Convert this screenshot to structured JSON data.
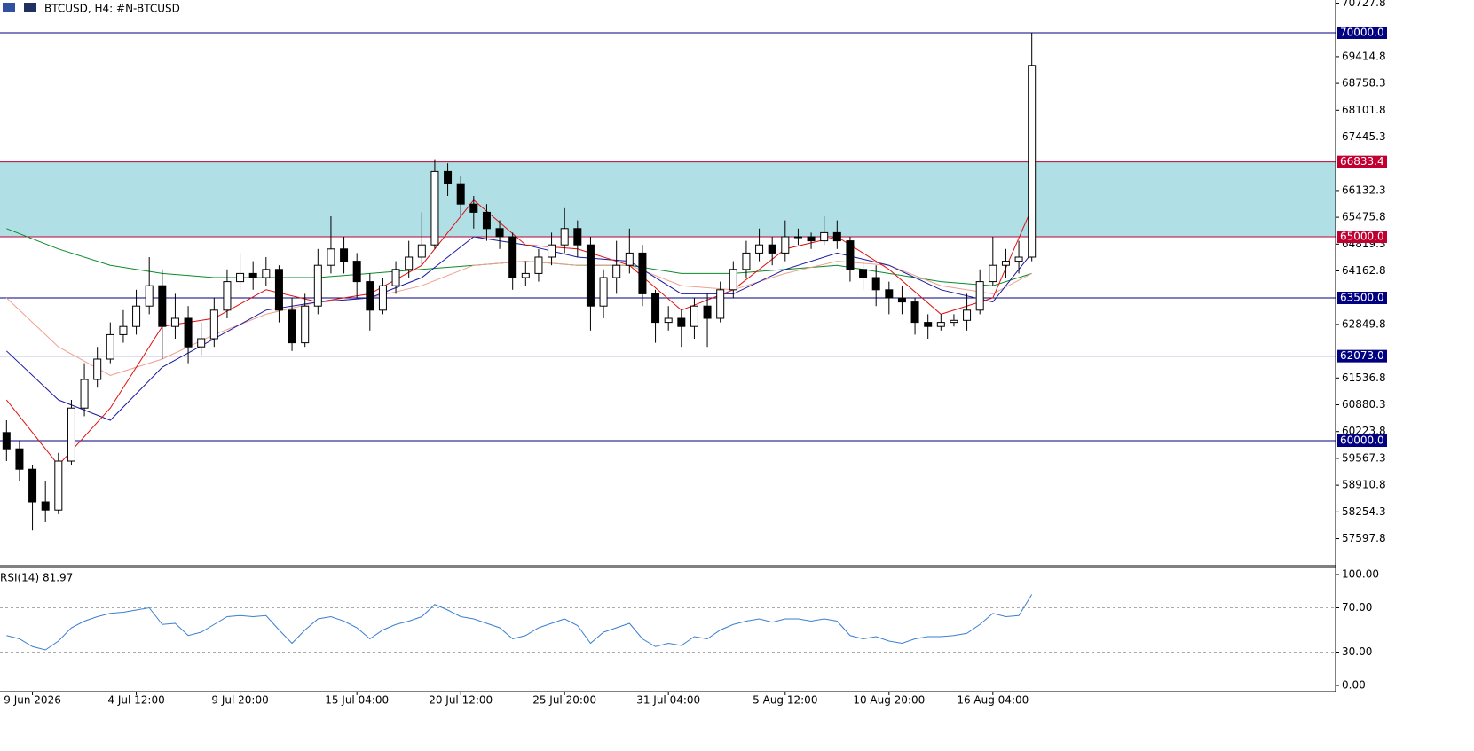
{
  "chart_data": {
    "type": "candlestick",
    "title": "BTCUSD, H4:  #N-BTCUSD",
    "categories": [
      null,
      null,
      "9 Jun 2026",
      null,
      null,
      null,
      null,
      null,
      null,
      null,
      "4 Jul 12:00",
      null,
      null,
      null,
      null,
      null,
      null,
      null,
      "9 Jul 20:00",
      null,
      null,
      null,
      null,
      null,
      null,
      null,
      null,
      "15 Jul 04:00",
      null,
      null,
      null,
      null,
      null,
      null,
      null,
      "20 Jul 12:00",
      null,
      null,
      null,
      null,
      null,
      null,
      null,
      "25 Jul 20:00",
      null,
      null,
      null,
      null,
      null,
      null,
      null,
      "31 Jul 04:00",
      null,
      null,
      null,
      null,
      null,
      null,
      null,
      null,
      "5 Aug 12:00",
      null,
      null,
      null,
      null,
      null,
      null,
      null,
      "10 Aug 20:00",
      null,
      null,
      null,
      null,
      null,
      null,
      null,
      "16 Aug 04:00",
      null,
      null,
      null
    ],
    "open": [
      60200,
      59800,
      59300,
      58500,
      58300,
      59500,
      60800,
      61500,
      62000,
      62600,
      62800,
      63300,
      63800,
      62800,
      63000,
      62300,
      62500,
      63200,
      63900,
      64100,
      64000,
      64200,
      63200,
      62400,
      63300,
      64300,
      64700,
      64400,
      63900,
      63200,
      63800,
      64200,
      64500,
      64800,
      66600,
      66300,
      65800,
      65600,
      65200,
      65000,
      64000,
      64100,
      64500,
      64800,
      65200,
      64800,
      63300,
      64000,
      64300,
      64600,
      63600,
      62900,
      63000,
      62800,
      63300,
      63000,
      63700,
      64200,
      64600,
      64800,
      64600,
      65000,
      65000,
      64900,
      65100,
      64900,
      64200,
      64000,
      63700,
      63500,
      63400,
      62900,
      62800,
      62900,
      62950,
      63200,
      63900,
      64300,
      64400,
      64500
    ],
    "high": [
      60500,
      60000,
      59400,
      59000,
      59700,
      61000,
      61900,
      62300,
      62900,
      63200,
      63700,
      64500,
      64200,
      63600,
      63300,
      62900,
      63500,
      64200,
      64600,
      64400,
      64500,
      64300,
      63500,
      63600,
      64700,
      65500,
      65000,
      64600,
      64100,
      64000,
      64400,
      64900,
      65600,
      66900,
      66800,
      66500,
      66000,
      65800,
      65400,
      65100,
      64400,
      64700,
      65100,
      65700,
      65400,
      65000,
      64200,
      64900,
      65200,
      64800,
      63700,
      63300,
      63200,
      63500,
      63600,
      63900,
      64400,
      64900,
      65200,
      65000,
      65400,
      65200,
      65100,
      65500,
      65400,
      65000,
      64400,
      64300,
      63900,
      63800,
      63500,
      63100,
      63100,
      63100,
      63600,
      64200,
      65000,
      64700,
      64900,
      70000
    ],
    "low": [
      59500,
      59000,
      57800,
      58000,
      58200,
      59400,
      60600,
      61300,
      61900,
      62400,
      62600,
      63100,
      62000,
      62500,
      61900,
      62100,
      62300,
      63000,
      63700,
      63700,
      63800,
      62900,
      62200,
      62300,
      63100,
      64100,
      64100,
      63500,
      62700,
      63100,
      63600,
      64000,
      64300,
      64700,
      66000,
      65500,
      65200,
      64900,
      64700,
      63700,
      63800,
      63900,
      64300,
      64600,
      64500,
      62700,
      63000,
      63600,
      64100,
      63300,
      62400,
      62700,
      62300,
      62500,
      62300,
      62900,
      63500,
      64000,
      64400,
      64300,
      64400,
      64800,
      64700,
      64800,
      64700,
      63900,
      63700,
      63300,
      63100,
      63100,
      62600,
      62500,
      62700,
      62800,
      62700,
      63100,
      63800,
      64000,
      64100,
      64400
    ],
    "close": [
      59800,
      59300,
      58500,
      58300,
      59500,
      60800,
      61500,
      62000,
      62600,
      62800,
      63300,
      63800,
      62800,
      63000,
      62300,
      62500,
      63200,
      63900,
      64100,
      64000,
      64200,
      63200,
      62400,
      63300,
      64300,
      64700,
      64400,
      63900,
      63200,
      63800,
      64200,
      64500,
      64800,
      66600,
      66300,
      65800,
      65600,
      65200,
      65000,
      64000,
      64100,
      64500,
      64800,
      65200,
      64800,
      63300,
      64000,
      64300,
      64600,
      63600,
      62900,
      63000,
      62800,
      63300,
      63000,
      63700,
      64200,
      64600,
      64800,
      64600,
      65000,
      65000,
      64900,
      65100,
      64900,
      64200,
      64000,
      63700,
      63500,
      63400,
      62900,
      62800,
      62900,
      62950,
      63200,
      63900,
      64300,
      64400,
      64500,
      69200
    ],
    "up_color": "#ffffff",
    "down_color": "#000000",
    "ma_x": [
      0,
      4,
      8,
      12,
      16,
      20,
      24,
      28,
      32,
      36,
      40,
      44,
      48,
      52,
      56,
      60,
      64,
      68,
      72,
      76,
      79
    ],
    "mas": [
      {
        "color": "#0a8a2a",
        "values": [
          65200,
          64700,
          64300,
          64100,
          64000,
          64000,
          64000,
          64100,
          64200,
          64300,
          64400,
          64300,
          64300,
          64100,
          64100,
          64200,
          64300,
          64100,
          63900,
          63800,
          64100
        ]
      },
      {
        "color": "#f0a090",
        "values": [
          63500,
          62300,
          61600,
          62000,
          62600,
          63100,
          63400,
          63500,
          63800,
          64300,
          64400,
          64300,
          64300,
          63800,
          63700,
          64100,
          64400,
          64300,
          63800,
          63600,
          64100
        ]
      },
      {
        "color": "#1a1aa0",
        "values": [
          62200,
          61000,
          60500,
          61800,
          62500,
          63200,
          63400,
          63500,
          64000,
          65000,
          64800,
          64500,
          64400,
          63600,
          63600,
          64200,
          64600,
          64300,
          63700,
          63400,
          64600
        ]
      },
      {
        "color": "#e01010",
        "values": [
          61000,
          59400,
          60800,
          62800,
          63000,
          63700,
          63400,
          63600,
          64300,
          65900,
          64800,
          64700,
          64300,
          63200,
          63700,
          64700,
          65000,
          64200,
          63100,
          63500,
          65700
        ]
      }
    ],
    "levels": [
      {
        "value": 70000,
        "label": "70000.0",
        "color": "#000080"
      },
      {
        "value": 66833.4,
        "label": "66833.4",
        "color": "#c00030"
      },
      {
        "value": 65000,
        "label": "65000.0",
        "color": "#c00030"
      },
      {
        "value": 63500,
        "label": "63500.0",
        "color": "#000080"
      },
      {
        "value": 62073,
        "label": "62073.0",
        "color": "#000080"
      },
      {
        "value": 60000,
        "label": "60000.0",
        "color": "#000080"
      }
    ],
    "zone": {
      "from": 65000,
      "to": 66833.4,
      "color": "#b0e0e6"
    },
    "ylim": [
      56957,
      70804
    ],
    "yticks": [
      70727.8,
      69414.8,
      68758.3,
      68101.8,
      67445.3,
      66132.3,
      65475.8,
      64819.3,
      64162.8,
      62849.8,
      61536.8,
      60880.3,
      60223.8,
      59567.3,
      58910.8,
      58254.3,
      57597.8
    ],
    "rsi": {
      "label": "RSI(14) 81.97",
      "color": "#3a7fd0",
      "values": [
        45,
        42,
        35,
        32,
        40,
        52,
        58,
        62,
        65,
        66,
        68,
        70,
        55,
        56,
        45,
        48,
        55,
        62,
        63,
        62,
        63,
        50,
        38,
        50,
        60,
        62,
        58,
        52,
        42,
        50,
        55,
        58,
        62,
        73,
        68,
        62,
        60,
        56,
        52,
        42,
        45,
        52,
        56,
        60,
        54,
        38,
        48,
        52,
        56,
        42,
        35,
        38,
        36,
        44,
        42,
        50,
        55,
        58,
        60,
        57,
        60,
        60,
        58,
        60,
        58,
        45,
        42,
        44,
        40,
        38,
        42,
        44,
        44,
        45,
        47,
        55,
        65,
        62,
        63,
        82
      ],
      "ylim": [
        -5.6,
        106.4
      ],
      "yticks": [
        {
          "value": 100,
          "label": "100.00"
        },
        {
          "value": 70,
          "label": "70.00"
        },
        {
          "value": 30,
          "label": "30.00"
        },
        {
          "value": 0,
          "label": "0.00"
        }
      ],
      "dashed": [
        70,
        30
      ]
    }
  }
}
